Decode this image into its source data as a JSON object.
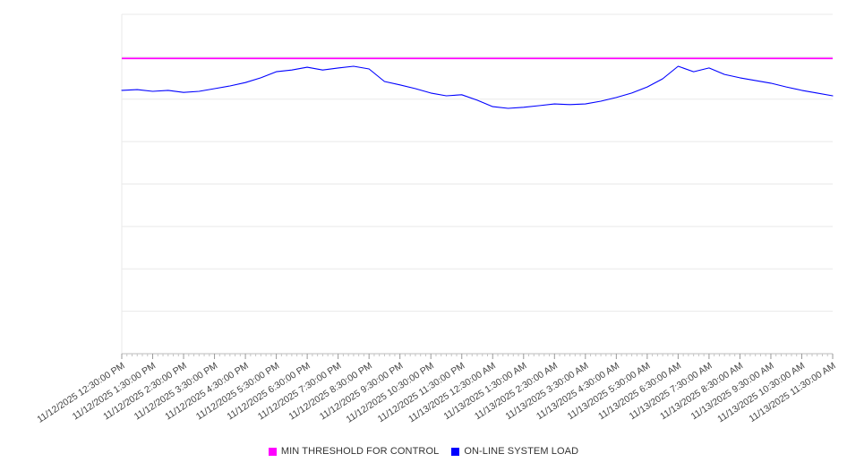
{
  "chart_data": {
    "type": "line",
    "title": "",
    "xlabel": "",
    "ylabel": "",
    "ylim": [
      0,
      100
    ],
    "y_gridline_divisions": 8,
    "grid": true,
    "legend_position": "bottom-center",
    "x_labels": [
      "11/12/2025 12:30:00 PM",
      "11/12/2025 1:30:00 PM",
      "11/12/2025 2:30:00 PM",
      "11/12/2025 3:30:00 PM",
      "11/12/2025 4:30:00 PM",
      "11/12/2025 5:30:00 PM",
      "11/12/2025 6:30:00 PM",
      "11/12/2025 7:30:00 PM",
      "11/12/2025 8:30:00 PM",
      "11/12/2025 9:30:00 PM",
      "11/12/2025 10:30:00 PM",
      "11/12/2025 11:30:00 PM",
      "11/13/2025 12:30:00 AM",
      "11/13/2025 1:30:00 AM",
      "11/13/2025 2:30:00 AM",
      "11/13/2025 3:30:00 AM",
      "11/13/2025 4:30:00 AM",
      "11/13/2025 5:30:00 AM",
      "11/13/2025 6:30:00 AM",
      "11/13/2025 7:30:00 AM",
      "11/13/2025 8:30:00 AM",
      "11/13/2025 9:30:00 AM",
      "11/13/2025 10:30:00 AM",
      "11/13/2025 11:30:00 AM"
    ],
    "points_per_hour": 2,
    "series": [
      {
        "name": "MIN THRESHOLD FOR CONTROL",
        "color": "#ff00ff",
        "constant_value": 87
      },
      {
        "name": "ON-LINE SYSTEM LOAD",
        "color": "#0000ff",
        "values": [
          77.6,
          77.8,
          77.3,
          77.6,
          77.0,
          77.3,
          78.1,
          78.9,
          79.9,
          81.3,
          83.1,
          83.6,
          84.4,
          83.6,
          84.2,
          84.7,
          83.9,
          80.2,
          79.2,
          78.1,
          76.8,
          76.0,
          76.3,
          74.7,
          72.8,
          72.3,
          72.6,
          73.1,
          73.6,
          73.4,
          73.6,
          74.4,
          75.5,
          76.8,
          78.6,
          81.0,
          84.7,
          83.1,
          84.2,
          82.3,
          81.3,
          80.5,
          79.7,
          78.6,
          77.6,
          76.8,
          76.0
        ]
      }
    ]
  },
  "colors": {
    "gridline": "#e9e9e9",
    "axis_line": "#bbbbbb",
    "major_tick": "#999999",
    "minor_tick": "#c4c4c4",
    "tick_label": "#444444"
  }
}
